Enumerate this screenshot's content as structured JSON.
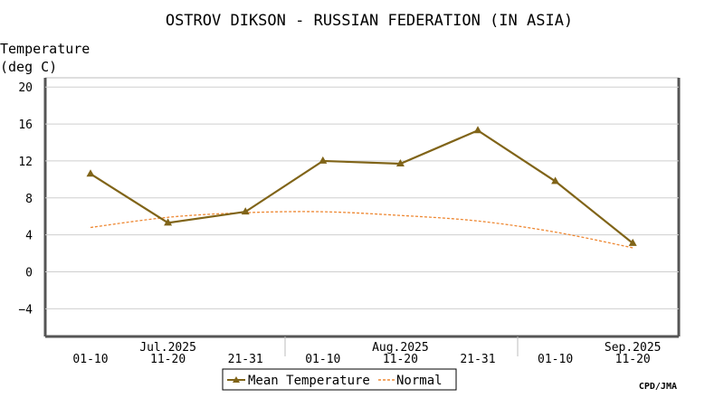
{
  "chart_data": {
    "type": "line",
    "title": "OSTROV DIKSON - RUSSIAN FEDERATION (IN ASIA)",
    "ylabel_line1": "Temperature",
    "ylabel_line2": "(deg C)",
    "ylim": [
      -7,
      21
    ],
    "yticks": [
      -4,
      0,
      4,
      8,
      12,
      16,
      20
    ],
    "categories": [
      "01-10",
      "11-20",
      "21-31",
      "01-10",
      "11-20",
      "21-31",
      "01-10",
      "11-20"
    ],
    "month_labels": [
      "Jul.2025",
      "Aug.2025",
      "Sep.2025"
    ],
    "grid": true,
    "legend_position": "bottom-center",
    "series": [
      {
        "name": "Mean Temperature",
        "values": [
          10.6,
          5.3,
          6.5,
          12.0,
          11.7,
          15.3,
          9.8,
          3.1
        ],
        "color": "#806418",
        "style": "solid-triangle-markers"
      },
      {
        "name": "Normal",
        "values": [
          4.8,
          5.9,
          6.4,
          6.5,
          6.1,
          5.5,
          4.3,
          2.6
        ],
        "color": "#ee8833",
        "style": "dashed"
      }
    ],
    "credit": "CPD/JMA"
  }
}
